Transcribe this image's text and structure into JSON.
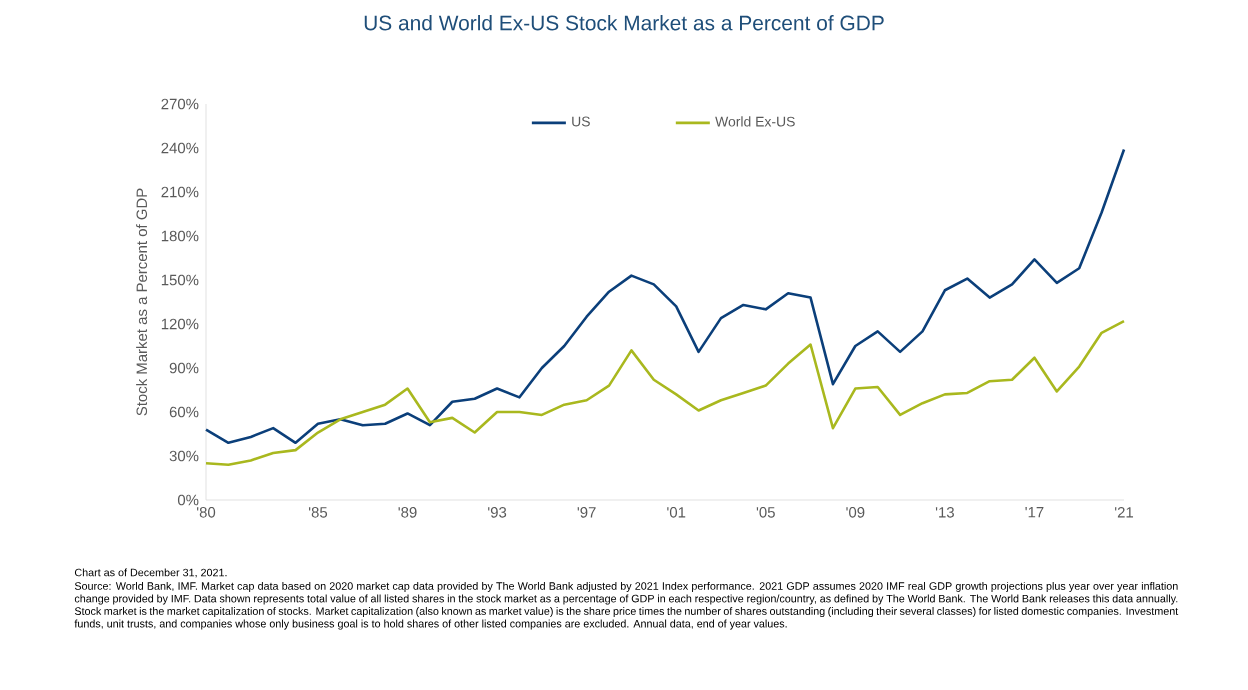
{
  "chart_data": {
    "type": "line",
    "title": "US and World Ex-US Stock Market as a Percent of GDP",
    "ylabel": "Stock Market as a Percent of GDP",
    "x": [
      1980,
      1981,
      1982,
      1983,
      1984,
      1985,
      1986,
      1987,
      1988,
      1989,
      1990,
      1991,
      1992,
      1993,
      1994,
      1995,
      1996,
      1997,
      1998,
      1999,
      2000,
      2001,
      2002,
      2003,
      2004,
      2005,
      2006,
      2007,
      2008,
      2009,
      2010,
      2011,
      2012,
      2013,
      2014,
      2015,
      2016,
      2017,
      2018,
      2019,
      2020,
      2021
    ],
    "series": [
      {
        "name": "US",
        "color": "#0b3f7a",
        "values": [
          48,
          39,
          43,
          49,
          39,
          52,
          55,
          51,
          52,
          59,
          51,
          67,
          69,
          76,
          70,
          90,
          105,
          125,
          142,
          153,
          147,
          132,
          101,
          124,
          133,
          130,
          141,
          138,
          79,
          105,
          115,
          101,
          115,
          143,
          151,
          138,
          147,
          164,
          148,
          158,
          196,
          239
        ]
      },
      {
        "name": "World Ex-US",
        "color": "#a9b81e",
        "values": [
          25,
          24,
          27,
          32,
          34,
          46,
          55,
          60,
          65,
          76,
          53,
          56,
          46,
          60,
          60,
          58,
          65,
          68,
          78,
          102,
          82,
          72,
          61,
          68,
          73,
          78,
          93,
          106,
          49,
          76,
          77,
          58,
          66,
          72,
          73,
          81,
          82,
          97,
          74,
          91,
          114,
          122
        ]
      }
    ],
    "xlim": [
      1980,
      2021
    ],
    "xticks": [
      {
        "value": 1980,
        "label": "'80"
      },
      {
        "value": 1985,
        "label": "'85"
      },
      {
        "value": 1989,
        "label": "'89"
      },
      {
        "value": 1993,
        "label": "'93"
      },
      {
        "value": 1997,
        "label": "'97"
      },
      {
        "value": 2001,
        "label": "'01"
      },
      {
        "value": 2005,
        "label": "'05"
      },
      {
        "value": 2009,
        "label": "'09"
      },
      {
        "value": 2013,
        "label": "'13"
      },
      {
        "value": 2017,
        "label": "'17"
      },
      {
        "value": 2021,
        "label": "'21"
      }
    ],
    "ylim": [
      0,
      270
    ],
    "yticks": [
      {
        "value": 0,
        "label": "0%"
      },
      {
        "value": 30,
        "label": "30%"
      },
      {
        "value": 60,
        "label": "60%"
      },
      {
        "value": 90,
        "label": "90%"
      },
      {
        "value": 120,
        "label": "120%"
      },
      {
        "value": 150,
        "label": "150%"
      },
      {
        "value": 180,
        "label": "180%"
      },
      {
        "value": 210,
        "label": "210%"
      },
      {
        "value": 240,
        "label": "240%"
      },
      {
        "value": 270,
        "label": "270%"
      }
    ],
    "legend": "top",
    "annotations": [
      "Chart as of December 31, 2021.",
      "Source: World Bank, IMF. Market cap data based on 2020 market cap data provided by The World Bank adjusted by 2021 Index performance. 2021 GDP assumes 2020 IMF real GDP growth projections plus year over year inflation change provided by IMF. Data shown represents total value of all listed shares in the stock market as a percentage of GDP in each respective region/country, as defined by The World Bank. The World Bank releases this data annually. Stock market is the market capitalization of stocks. Market capitalization (also known as market value) is the share price times the number of shares outstanding (including their several classes) for listed domestic companies. Investment funds, unit trusts, and companies whose only business goal is to hold shares of other listed companies are excluded. Annual data, end of year values."
    ]
  }
}
